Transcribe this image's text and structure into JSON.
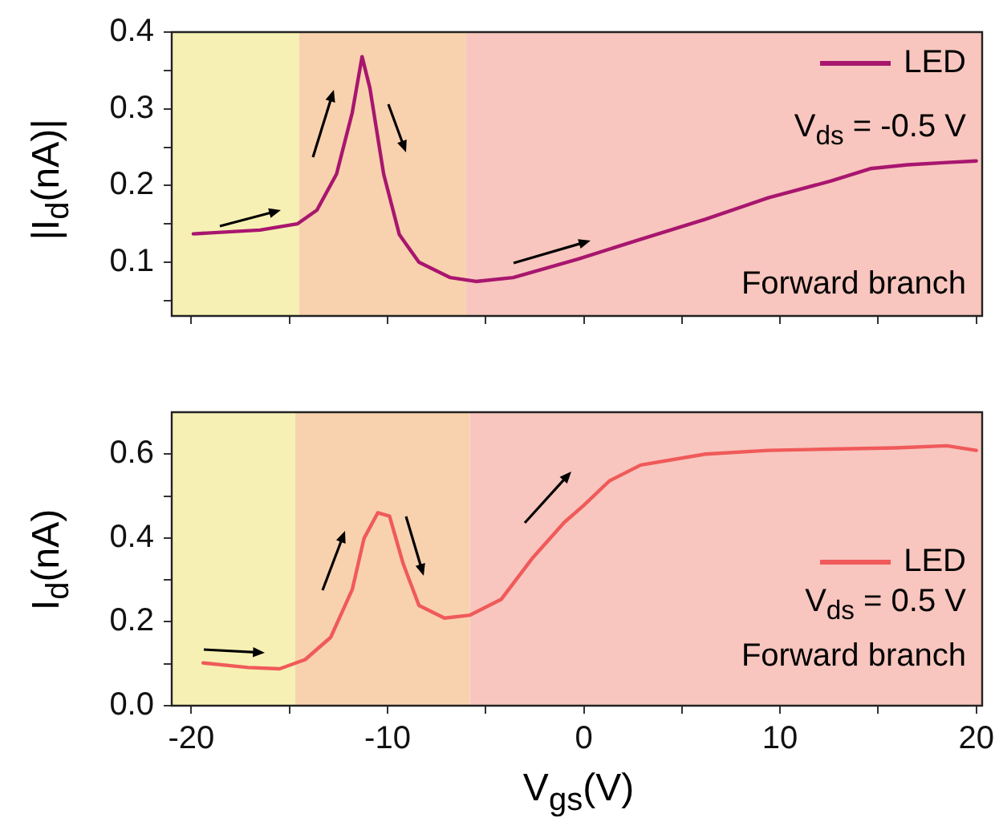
{
  "chart_data": [
    {
      "type": "line",
      "ylabel": "|I$_{d}$(nA)|",
      "legend": "top right",
      "grid": false,
      "tick_labels": "y",
      "marker": "none",
      "line_style": "solid",
      "x": [
        -19.9,
        -16.5,
        -14.6,
        -13.6,
        -12.6,
        -11.8,
        -11.3,
        -10.9,
        -10.2,
        -9.4,
        -8.4,
        -6.8,
        -5.5,
        -3.6,
        -0.3,
        2.9,
        6.2,
        9.4,
        12.6,
        14.6,
        16.5,
        18.5,
        20
      ],
      "series": [
        {
          "name": "LED",
          "color": "#a8166e",
          "values": [
            0.137,
            0.142,
            0.15,
            0.168,
            0.215,
            0.295,
            0.368,
            0.327,
            0.215,
            0.136,
            0.1,
            0.08,
            0.075,
            0.08,
            0.104,
            0.13,
            0.156,
            0.184,
            0.206,
            0.222,
            0.227,
            0.23,
            0.232
          ]
        }
      ],
      "xlim": [
        -21,
        20.3
      ],
      "xticks": [
        {
          "value": -20,
          "label": null
        },
        {
          "value": -15,
          "label": null
        },
        {
          "value": -10,
          "label": null
        },
        {
          "value": -5,
          "label": null
        },
        {
          "value": 0,
          "label": null
        },
        {
          "value": 5,
          "label": null
        },
        {
          "value": 10,
          "label": null
        },
        {
          "value": 15,
          "label": null
        },
        {
          "value": 20,
          "label": null
        }
      ],
      "ylim": [
        0.03,
        0.4
      ],
      "yticks": [
        {
          "value": 0.05,
          "label": null
        },
        0.1,
        {
          "value": 0.15,
          "label": null
        },
        0.2,
        {
          "value": 0.25,
          "label": null
        },
        0.3,
        {
          "value": 0.35,
          "label": null
        },
        0.4
      ],
      "bands": [
        {
          "axis": "x",
          "from": -21,
          "to": -14.5,
          "color": "#f6f0b4"
        },
        {
          "axis": "x",
          "from": -14.5,
          "to": -6,
          "color": "#f8d2ae"
        },
        {
          "axis": "x",
          "from": -6,
          "to": 20.3,
          "color": "#f8c6be"
        }
      ],
      "annotations": [
        "V$_{ds}$ = -0.5 V",
        "Forward branch"
      ]
    },
    {
      "type": "line",
      "xlabel": "V$_{gs}$(V)",
      "ylabel": "I$_{d}$(nA)",
      "legend": "right",
      "grid": false,
      "marker": "none",
      "line_style": "solid",
      "x": [
        -19.4,
        -17.1,
        -15.5,
        -14.2,
        -12.9,
        -11.8,
        -11.2,
        -10.5,
        -9.9,
        -9.2,
        -8.4,
        -7.1,
        -5.8,
        -4.2,
        -2.6,
        -1.0,
        0,
        1.3,
        2.9,
        6.2,
        9.4,
        12.6,
        15.9,
        18.5,
        20
      ],
      "series": [
        {
          "name": "LED",
          "color": "#f05a5a",
          "values": [
            0.102,
            0.091,
            0.088,
            0.11,
            0.163,
            0.277,
            0.399,
            0.46,
            0.452,
            0.338,
            0.239,
            0.209,
            0.216,
            0.254,
            0.353,
            0.437,
            0.478,
            0.536,
            0.574,
            0.6,
            0.609,
            0.612,
            0.615,
            0.62,
            0.609
          ]
        }
      ],
      "xlim": [
        -21,
        20.3
      ],
      "xticks": [
        -20,
        {
          "value": -15,
          "label": null
        },
        -10,
        {
          "value": -5,
          "label": null
        },
        0,
        {
          "value": 5,
          "label": null
        },
        10,
        {
          "value": 15,
          "label": null
        },
        20
      ],
      "ylim": [
        0,
        0.7
      ],
      "yticks": [
        {
          "value": 0,
          "label": "0.0"
        },
        {
          "value": 0.1,
          "label": null
        },
        0.2,
        {
          "value": 0.3,
          "label": null
        },
        0.4,
        {
          "value": 0.5,
          "label": null
        },
        0.6
      ],
      "bands": [
        {
          "axis": "x",
          "from": -21,
          "to": -14.7,
          "color": "#f6f0b4"
        },
        {
          "axis": "x",
          "from": -14.7,
          "to": -5.8,
          "color": "#f8d2ae"
        },
        {
          "axis": "x",
          "from": -5.8,
          "to": 20.3,
          "color": "#f8c6be"
        }
      ],
      "annotations": [
        "V$_{ds}$ = 0.5 V",
        "Forward branch"
      ]
    }
  ]
}
